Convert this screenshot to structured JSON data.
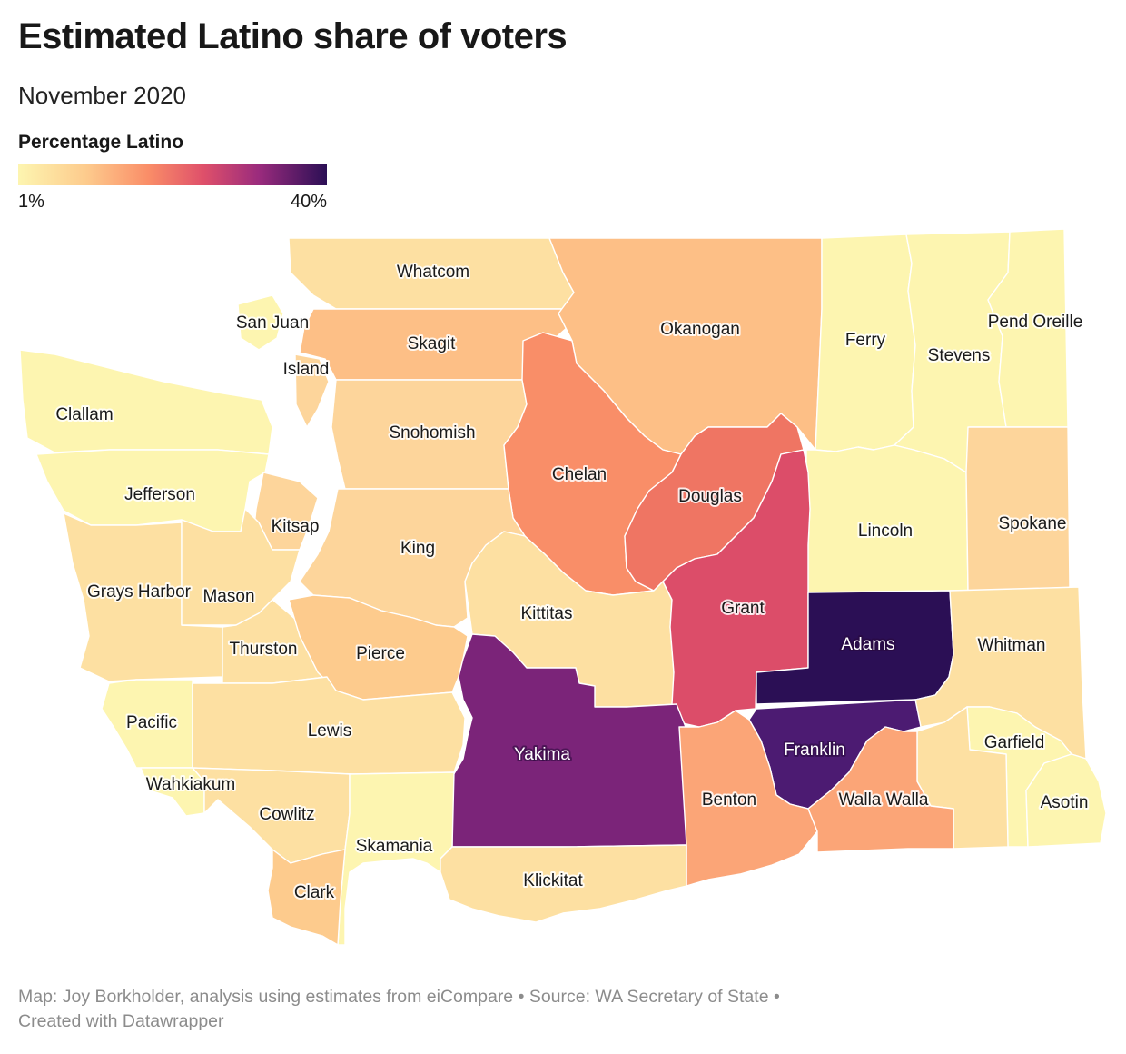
{
  "title": "Estimated Latino share of voters",
  "subtitle": "November 2020",
  "legend": {
    "title": "Percentage Latino",
    "min_label": "1%",
    "max_label": "40%"
  },
  "colors": {
    "c1": "#fdf5b0",
    "c2": "#fde0a2",
    "c3": "#fdd59b",
    "c4": "#fdcb8d",
    "c5": "#fdbf86",
    "c6": "#fba577",
    "c7": "#f98e68",
    "c8": "#ef7563",
    "c9": "#dc4d69",
    "c10": "#7b2479",
    "c11": "#4c1b72",
    "c12": "#2b0f55"
  },
  "counties": {
    "whatcom": "Whatcom",
    "san_juan": "San Juan",
    "skagit": "Skagit",
    "island": "Island",
    "okanogan": "Okanogan",
    "ferry": "Ferry",
    "stevens": "Stevens",
    "pend_oreille": "Pend Oreille",
    "clallam": "Clallam",
    "snohomish": "Snohomish",
    "chelan": "Chelan",
    "jefferson": "Jefferson",
    "douglas": "Douglas",
    "kitsap": "Kitsap",
    "lincoln": "Lincoln",
    "spokane": "Spokane",
    "king": "King",
    "grays_harbor": "Grays Harbor",
    "mason": "Mason",
    "kittitas": "Kittitas",
    "grant": "Grant",
    "adams": "Adams",
    "whitman": "Whitman",
    "thurston": "Thurston",
    "pierce": "Pierce",
    "pacific": "Pacific",
    "lewis": "Lewis",
    "yakima": "Yakima",
    "franklin": "Franklin",
    "garfield": "Garfield",
    "wahkiakum": "Wahkiakum",
    "benton": "Benton",
    "walla_walla": "Walla Walla",
    "asotin": "Asotin",
    "cowlitz": "Cowlitz",
    "skamania": "Skamania",
    "klickitat": "Klickitat",
    "clark": "Clark",
    "columbia": ""
  },
  "footer": {
    "line1": "Map: Joy Borkholder, analysis using estimates from eiCompare • Source: WA Secretary of State •",
    "line2": "Created with Datawrapper"
  }
}
